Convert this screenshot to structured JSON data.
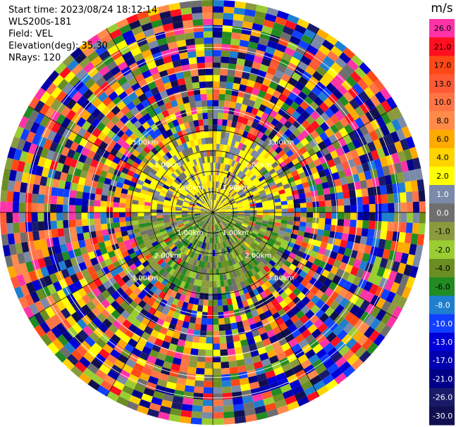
{
  "header": {
    "start_time": "Start time: 2023/08/24 18:12:14",
    "station": "WLS200s-181",
    "field": "Field: VEL",
    "elevation": "Elevation(deg): 35.30",
    "nrays": "NRays: 120"
  },
  "chart_data": {
    "type": "heatmap",
    "projection": "polar-ppi",
    "field": "VEL",
    "units": "m/s",
    "n_rays": 120,
    "range_ring_labels": [
      "1.00km",
      "2.00km",
      "3.00km"
    ],
    "colorbar": {
      "title": "m/s",
      "levels": [
        {
          "label": "26.0",
          "color": "#ff33a8"
        },
        {
          "label": "21.0",
          "color": "#ff0f1f"
        },
        {
          "label": "17.0",
          "color": "#ff4815"
        },
        {
          "label": "13.0",
          "color": "#ff5a35"
        },
        {
          "label": "10.0",
          "color": "#ff7445"
        },
        {
          "label": "8.0",
          "color": "#ff8a4a"
        },
        {
          "label": "6.0",
          "color": "#ffaa00"
        },
        {
          "label": "4.0",
          "color": "#ffd400"
        },
        {
          "label": "2.0",
          "color": "#ffff00"
        },
        {
          "label": "1.0",
          "color": "#7a8aa8"
        },
        {
          "label": "0.0",
          "color": "#6e6e6e"
        },
        {
          "label": "-1.0",
          "color": "#8a9a3c"
        },
        {
          "label": "-2.0",
          "color": "#9acd32"
        },
        {
          "label": "-4.0",
          "color": "#6b8e23"
        },
        {
          "label": "-6.0",
          "color": "#228b22"
        },
        {
          "label": "-8.0",
          "color": "#1e7fd0"
        },
        {
          "label": "-10.0",
          "color": "#1040ff"
        },
        {
          "label": "-13.0",
          "color": "#0000d8"
        },
        {
          "label": "-17.0",
          "color": "#0000b0"
        },
        {
          "label": "-21.0",
          "color": "#000088"
        },
        {
          "label": "-26.0",
          "color": "#1a1a6a"
        },
        {
          "label": "-30.0",
          "color": "#101050"
        }
      ]
    }
  }
}
